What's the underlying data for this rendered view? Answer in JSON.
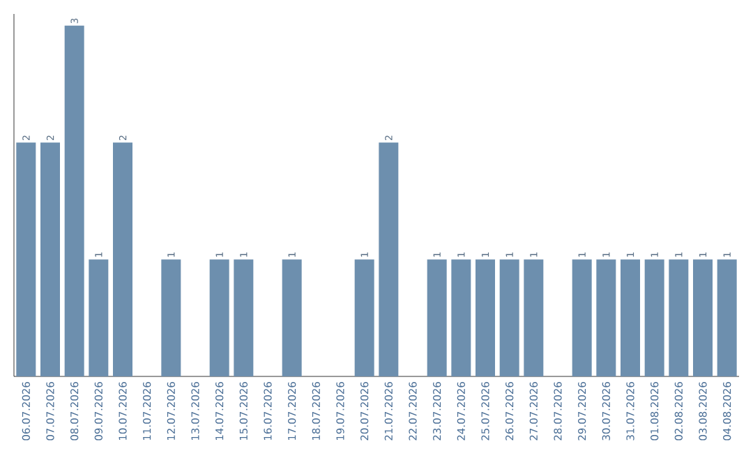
{
  "chart_data": {
    "type": "bar",
    "categories": [
      "06.07.2026",
      "07.07.2026",
      "08.07.2026",
      "09.07.2026",
      "10.07.2026",
      "11.07.2026",
      "12.07.2026",
      "13.07.2026",
      "14.07.2026",
      "15.07.2026",
      "16.07.2026",
      "17.07.2026",
      "18.07.2026",
      "19.07.2026",
      "20.07.2026",
      "21.07.2026",
      "22.07.2026",
      "23.07.2026",
      "24.07.2026",
      "25.07.2026",
      "26.07.2026",
      "27.07.2026",
      "28.07.2026",
      "29.07.2026",
      "30.07.2026",
      "31.07.2026",
      "01.08.2026",
      "02.08.2026",
      "03.08.2026",
      "04.08.2026"
    ],
    "values": [
      2,
      2,
      3,
      1,
      2,
      0,
      1,
      0,
      1,
      1,
      0,
      1,
      0,
      0,
      1,
      2,
      0,
      1,
      1,
      1,
      1,
      1,
      0,
      1,
      1,
      1,
      1,
      1,
      1,
      1
    ],
    "value_labels": [
      "2",
      "2",
      "3",
      "1",
      "2",
      null,
      "1",
      null,
      "1",
      "1",
      null,
      "1",
      null,
      null,
      "1",
      "2",
      null,
      "1",
      "1",
      "1",
      "1",
      "1",
      null,
      "1",
      "1",
      "1",
      "1",
      "1",
      "1",
      "1"
    ],
    "color": "#6d8fae",
    "ylim": [
      0,
      3.1
    ],
    "tick_labels": "x"
  }
}
